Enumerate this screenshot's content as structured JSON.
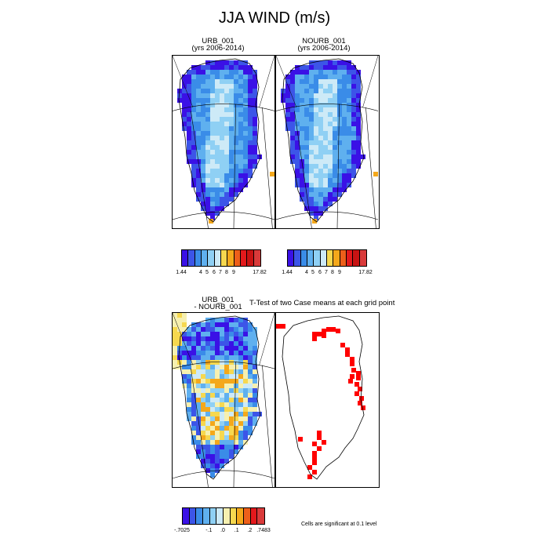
{
  "figure": {
    "title": "JJA WIND (m/s)",
    "panels": [
      {
        "title_line1": "URB_001",
        "title_line2": "(yrs 2006-2014)"
      },
      {
        "title_line1": "NOURB_001",
        "title_line2": "(yrs 2006-2014)"
      },
      {
        "title_line1": "URB_001",
        "title_line2": "- NOURB_001"
      },
      {
        "title_line1": "T-Test of two Case means at each grid point",
        "title_line2": ""
      }
    ],
    "note": "Cells are significant at 0.1 level"
  },
  "chart_data": [
    {
      "type": "heatmap",
      "title": "URB_001 (yrs 2006-2014)",
      "colorbar": {
        "colors": [
          "#3a11e6",
          "#3c55e8",
          "#3a8ce8",
          "#5fb0ef",
          "#8fd0f4",
          "#cdeaf7",
          "#f6d84f",
          "#f4a81b",
          "#ed5f1a",
          "#e3191c",
          "#c81313",
          "#d93a3a"
        ],
        "tick_labels": [
          "1.44",
          "4",
          "5",
          "6",
          "7",
          "8",
          "9",
          "17.82"
        ]
      }
    },
    {
      "type": "heatmap",
      "title": "NOURB_001 (yrs 2006-2014)",
      "colorbar": {
        "colors": [
          "#3a11e6",
          "#3c55e8",
          "#3a8ce8",
          "#5fb0ef",
          "#8fd0f4",
          "#cdeaf7",
          "#f6d84f",
          "#f4a81b",
          "#ed5f1a",
          "#e3191c",
          "#c81313",
          "#d93a3a"
        ],
        "tick_labels": [
          "1.44",
          "4",
          "5",
          "6",
          "7",
          "8",
          "9",
          "17.82"
        ]
      }
    },
    {
      "type": "heatmap",
      "title": "URB_001 - NOURB_001",
      "colorbar": {
        "colors": [
          "#3a11e6",
          "#3c55e8",
          "#3a8ce8",
          "#5fb0ef",
          "#8fd0f4",
          "#cdeaf7",
          "#f6f0b0",
          "#f6d84f",
          "#f4a81b",
          "#ed5f1a",
          "#e3191c",
          "#d93a3a"
        ],
        "tick_labels": [
          "-.7025",
          "-.1",
          ".0",
          ".1",
          ".2",
          ".7483"
        ]
      }
    },
    {
      "type": "heatmap",
      "title": "T-Test of two Case means at each grid point",
      "significant_color": "#ff0000"
    }
  ]
}
